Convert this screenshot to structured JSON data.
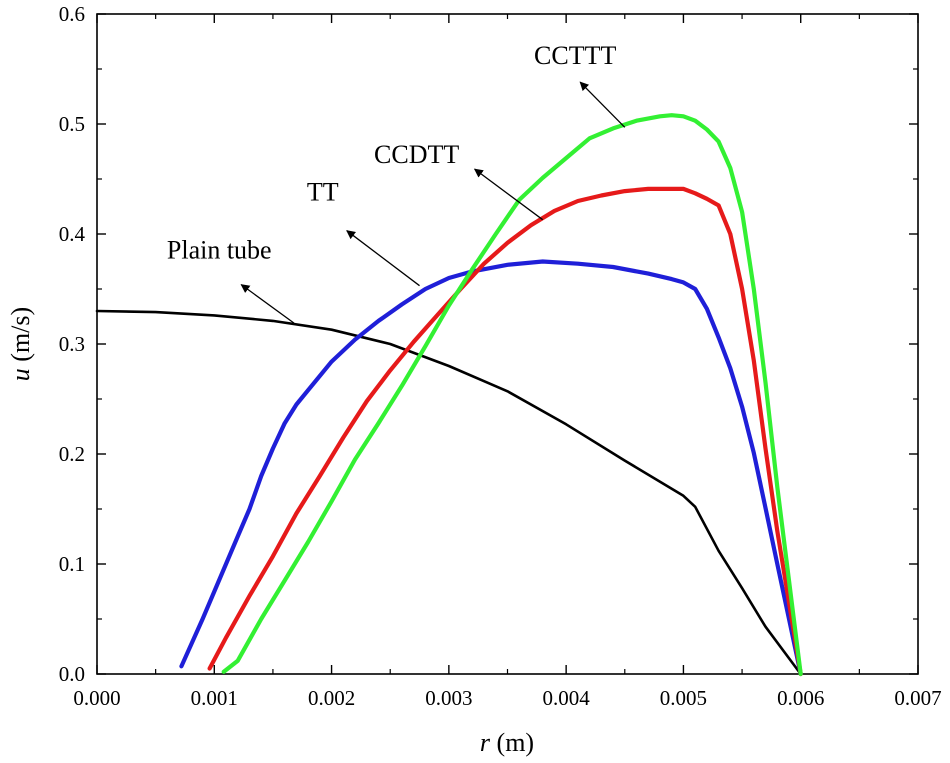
{
  "chart_data": {
    "type": "line",
    "title": "",
    "xlabel": "r (m)",
    "xlabel_var": "r",
    "xlabel_unit": " (m)",
    "ylabel": "u (m/s)",
    "ylabel_var": "u",
    "ylabel_unit": " (m/s)",
    "xlim": [
      0,
      0.007
    ],
    "ylim": [
      0,
      0.6
    ],
    "xticks": [
      "0.000",
      "0.001",
      "0.002",
      "0.003",
      "0.004",
      "0.005",
      "0.006",
      "0.007"
    ],
    "yticks": [
      "0.0",
      "0.1",
      "0.2",
      "0.3",
      "0.4",
      "0.5",
      "0.6"
    ],
    "grid": false,
    "series": [
      {
        "name": "Plain tube",
        "color": "#000000",
        "x": [
          0.0,
          0.0005,
          0.001,
          0.0015,
          0.002,
          0.0025,
          0.003,
          0.0035,
          0.004,
          0.0045,
          0.005,
          0.0051,
          0.0053,
          0.0055,
          0.0057,
          0.006
        ],
        "y": [
          0.33,
          0.329,
          0.326,
          0.321,
          0.313,
          0.3,
          0.28,
          0.257,
          0.227,
          0.194,
          0.162,
          0.152,
          0.112,
          0.078,
          0.043,
          0.0
        ]
      },
      {
        "name": "TT",
        "color": "#1f1fd8",
        "x": [
          0.00072,
          0.0009,
          0.0011,
          0.0012,
          0.0013,
          0.0014,
          0.0015,
          0.0016,
          0.0017,
          0.0018,
          0.002,
          0.0022,
          0.0024,
          0.0026,
          0.0028,
          0.003,
          0.0032,
          0.0035,
          0.0038,
          0.0041,
          0.0044,
          0.0047,
          0.0049,
          0.005,
          0.0051,
          0.0052,
          0.0053,
          0.0054,
          0.0055,
          0.0056,
          0.0057,
          0.0058,
          0.0059,
          0.006
        ],
        "y": [
          0.007,
          0.05,
          0.1,
          0.125,
          0.15,
          0.18,
          0.205,
          0.228,
          0.245,
          0.258,
          0.284,
          0.304,
          0.321,
          0.336,
          0.35,
          0.36,
          0.366,
          0.372,
          0.375,
          0.373,
          0.37,
          0.364,
          0.359,
          0.356,
          0.35,
          0.332,
          0.306,
          0.278,
          0.243,
          0.201,
          0.151,
          0.1,
          0.05,
          0.0
        ]
      },
      {
        "name": "CCDTT",
        "color": "#e61a1a",
        "x": [
          0.00096,
          0.0011,
          0.0013,
          0.0015,
          0.0017,
          0.0019,
          0.0021,
          0.0023,
          0.0025,
          0.0027,
          0.0029,
          0.0031,
          0.0033,
          0.0035,
          0.0037,
          0.0039,
          0.0041,
          0.0043,
          0.0045,
          0.0047,
          0.0049,
          0.005,
          0.0051,
          0.0052,
          0.0053,
          0.0054,
          0.0055,
          0.0056,
          0.0057,
          0.0058,
          0.0059,
          0.006
        ],
        "y": [
          0.005,
          0.033,
          0.071,
          0.107,
          0.146,
          0.18,
          0.215,
          0.248,
          0.276,
          0.302,
          0.326,
          0.35,
          0.373,
          0.392,
          0.408,
          0.421,
          0.43,
          0.435,
          0.439,
          0.441,
          0.441,
          0.441,
          0.437,
          0.432,
          0.426,
          0.4,
          0.35,
          0.285,
          0.205,
          0.13,
          0.065,
          0.0
        ]
      },
      {
        "name": "CCTTT",
        "color": "#33f033",
        "x": [
          0.00108,
          0.0012,
          0.0014,
          0.0016,
          0.0018,
          0.002,
          0.0022,
          0.0024,
          0.0026,
          0.0028,
          0.003,
          0.0032,
          0.0034,
          0.0036,
          0.0038,
          0.004,
          0.0042,
          0.0044,
          0.0046,
          0.0048,
          0.0049,
          0.005,
          0.0051,
          0.0052,
          0.0053,
          0.0054,
          0.0055,
          0.0056,
          0.0057,
          0.0058,
          0.0059,
          0.006
        ],
        "y": [
          0.002,
          0.012,
          0.05,
          0.085,
          0.12,
          0.157,
          0.195,
          0.228,
          0.262,
          0.298,
          0.335,
          0.368,
          0.4,
          0.431,
          0.451,
          0.469,
          0.487,
          0.496,
          0.503,
          0.507,
          0.508,
          0.507,
          0.503,
          0.495,
          0.484,
          0.46,
          0.42,
          0.35,
          0.265,
          0.17,
          0.085,
          0.0
        ]
      }
    ],
    "annotations": [
      {
        "text": "CCTTT",
        "series": "CCTTT",
        "arrow_from": [
          0.0045,
          0.497
        ],
        "arrow_to": [
          0.00412,
          0.538
        ]
      },
      {
        "text": "CCDTT",
        "series": "CCDTT",
        "arrow_from": [
          0.0038,
          0.413
        ],
        "arrow_to": [
          0.00322,
          0.459
        ]
      },
      {
        "text": "TT",
        "series": "TT",
        "arrow_from": [
          0.00275,
          0.353
        ],
        "arrow_to": [
          0.00213,
          0.403
        ]
      },
      {
        "text": "Plain tube",
        "series": "Plain tube",
        "arrow_from": [
          0.00168,
          0.319
        ],
        "arrow_to": [
          0.00123,
          0.354
        ]
      }
    ]
  }
}
